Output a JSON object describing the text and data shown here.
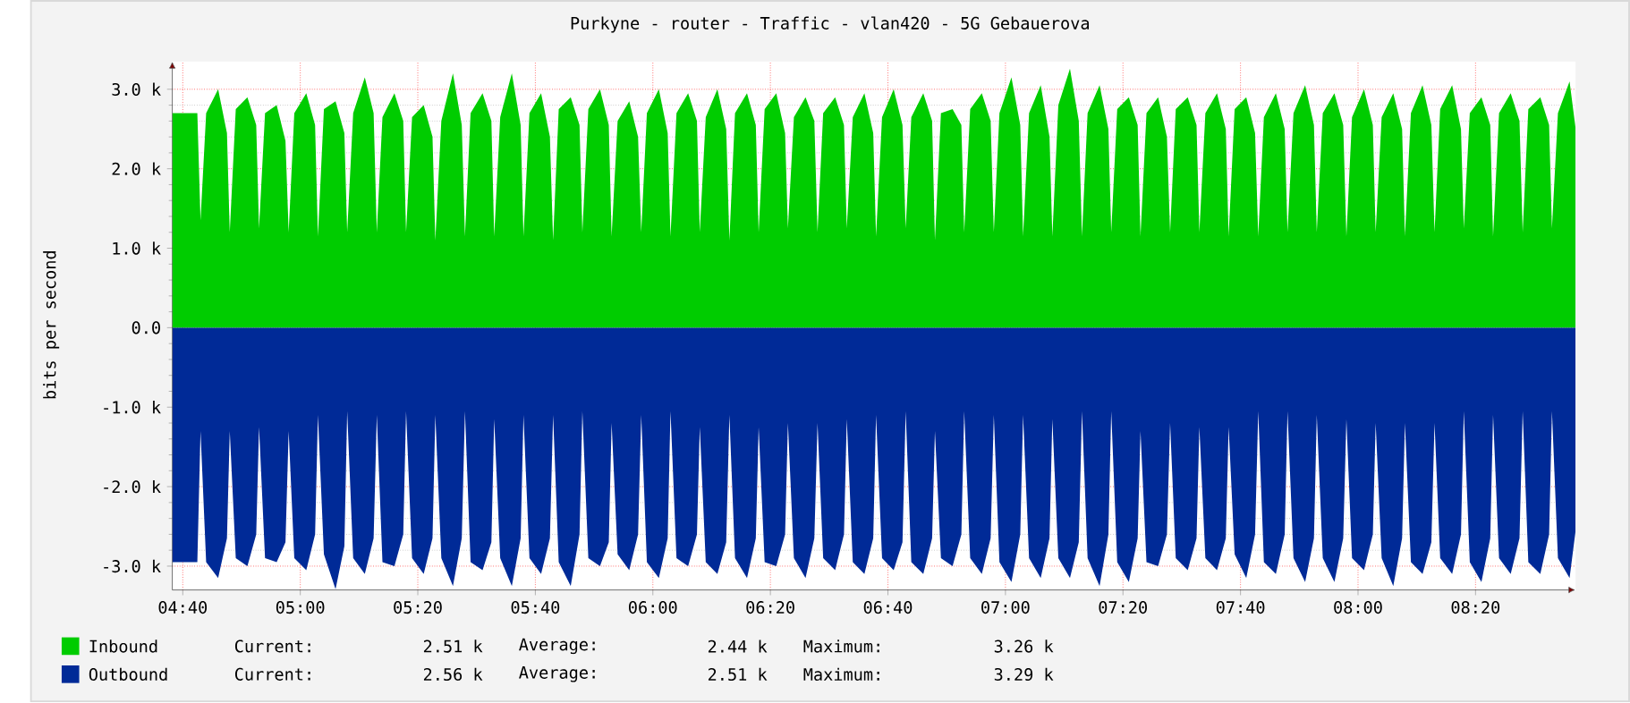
{
  "chart_data": {
    "type": "area",
    "title": "Purkyne - router  - Traffic - vlan420 - 5G Gebauerova",
    "ylabel": "bits per second",
    "x": [
      4.637,
      4.708,
      4.717,
      4.733,
      4.767,
      4.792,
      4.8,
      4.817,
      4.85,
      4.875,
      4.883,
      4.9,
      4.933,
      4.958,
      4.967,
      4.983,
      5.017,
      5.042,
      5.05,
      5.067,
      5.1,
      5.125,
      5.133,
      5.15,
      5.183,
      5.208,
      5.217,
      5.233,
      5.267,
      5.292,
      5.3,
      5.317,
      5.35,
      5.375,
      5.383,
      5.4,
      5.433,
      5.458,
      5.467,
      5.483,
      5.517,
      5.542,
      5.55,
      5.567,
      5.6,
      5.625,
      5.633,
      5.65,
      5.683,
      5.708,
      5.717,
      5.733,
      5.767,
      5.792,
      5.8,
      5.817,
      5.85,
      5.875,
      5.883,
      5.9,
      5.933,
      5.958,
      5.967,
      5.983,
      6.017,
      6.042,
      6.05,
      6.067,
      6.1,
      6.125,
      6.133,
      6.15,
      6.183,
      6.208,
      6.217,
      6.233,
      6.267,
      6.292,
      6.3,
      6.317,
      6.35,
      6.375,
      6.383,
      6.4,
      6.433,
      6.458,
      6.467,
      6.483,
      6.517,
      6.542,
      6.55,
      6.567,
      6.6,
      6.625,
      6.633,
      6.65,
      6.683,
      6.708,
      6.717,
      6.733,
      6.767,
      6.792,
      6.8,
      6.817,
      6.85,
      6.875,
      6.883,
      6.9,
      6.933,
      6.958,
      6.967,
      6.983,
      7.017,
      7.042,
      7.05,
      7.067,
      7.1,
      7.125,
      7.133,
      7.15,
      7.183,
      7.208,
      7.217,
      7.233,
      7.267,
      7.292,
      7.3,
      7.317,
      7.35,
      7.375,
      7.383,
      7.4,
      7.433,
      7.458,
      7.467,
      7.483,
      7.517,
      7.542,
      7.55,
      7.567,
      7.6,
      7.625,
      7.633,
      7.65,
      7.683,
      7.708,
      7.717,
      7.733,
      7.767,
      7.792,
      7.8,
      7.817,
      7.85,
      7.875,
      7.883,
      7.9,
      7.933,
      7.958,
      7.967,
      7.983,
      8.017,
      8.042,
      8.05,
      8.067,
      8.1,
      8.125,
      8.133,
      8.15,
      8.183,
      8.208,
      8.217,
      8.233,
      8.267,
      8.292,
      8.3,
      8.317,
      8.35,
      8.375,
      8.383,
      8.4,
      8.433,
      8.458,
      8.467,
      8.483,
      8.517,
      8.542,
      8.55,
      8.567,
      8.6,
      8.617
    ],
    "series": [
      {
        "name": "Inbound",
        "color": "#00cc00",
        "values": [
          2700,
          2700,
          1350,
          2700,
          3000,
          2450,
          1200,
          2750,
          2900,
          2550,
          1250,
          2700,
          2800,
          2350,
          1200,
          2700,
          2950,
          2550,
          1150,
          2750,
          2850,
          2450,
          1200,
          2700,
          3150,
          2700,
          1200,
          2650,
          2950,
          2600,
          1200,
          2650,
          2800,
          2400,
          1100,
          2600,
          3200,
          2550,
          1150,
          2700,
          2950,
          2600,
          1150,
          2650,
          3200,
          2550,
          1150,
          2700,
          2950,
          2400,
          1100,
          2750,
          2900,
          2550,
          1200,
          2750,
          3000,
          2550,
          1150,
          2600,
          2850,
          2400,
          1200,
          2700,
          3000,
          2450,
          1150,
          2700,
          2950,
          2600,
          1200,
          2650,
          3000,
          2500,
          1100,
          2700,
          2950,
          2550,
          1200,
          2750,
          2950,
          2450,
          1250,
          2650,
          2900,
          2600,
          1200,
          2700,
          2900,
          2550,
          1250,
          2650,
          2950,
          2450,
          1150,
          2650,
          3000,
          2550,
          1250,
          2650,
          2950,
          2600,
          1100,
          2700,
          2750,
          2550,
          1200,
          2750,
          2950,
          2600,
          1200,
          2700,
          3150,
          2550,
          1150,
          2700,
          3050,
          2400,
          1150,
          2800,
          3260,
          2600,
          1150,
          2700,
          3050,
          2500,
          1200,
          2750,
          2900,
          2550,
          1150,
          2700,
          2900,
          2400,
          1200,
          2750,
          2900,
          2550,
          1200,
          2700,
          2950,
          2500,
          1150,
          2750,
          2900,
          2450,
          1150,
          2650,
          2950,
          2500,
          1200,
          2700,
          3050,
          2550,
          1200,
          2700,
          2950,
          2550,
          1150,
          2650,
          3000,
          2550,
          1200,
          2650,
          2950,
          2500,
          1150,
          2700,
          3050,
          2550,
          1200,
          2750,
          3050,
          2500,
          1250,
          2700,
          2900,
          2550,
          1150,
          2700,
          2950,
          2600,
          1200,
          2750,
          2900,
          2550,
          1250,
          2700,
          3100,
          2510
        ]
      },
      {
        "name": "Outbound",
        "color": "#002a97",
        "values": [
          -2950,
          -2950,
          -1300,
          -2950,
          -3150,
          -2650,
          -1300,
          -2900,
          -3000,
          -2600,
          -1250,
          -2900,
          -2950,
          -2700,
          -1300,
          -2900,
          -3050,
          -2600,
          -1100,
          -2850,
          -3290,
          -2750,
          -1050,
          -2900,
          -3100,
          -2650,
          -1100,
          -2950,
          -3000,
          -2600,
          -1050,
          -2900,
          -3100,
          -2650,
          -1100,
          -2900,
          -3250,
          -2650,
          -1050,
          -2950,
          -3050,
          -2700,
          -1150,
          -2900,
          -3250,
          -2650,
          -1100,
          -2900,
          -3100,
          -2650,
          -1100,
          -2950,
          -3250,
          -2600,
          -1050,
          -2900,
          -3000,
          -2700,
          -1200,
          -2850,
          -3050,
          -2600,
          -1100,
          -2950,
          -3150,
          -2650,
          -1050,
          -2900,
          -3000,
          -2600,
          -1250,
          -2950,
          -3100,
          -2700,
          -1100,
          -2900,
          -3150,
          -2650,
          -1250,
          -2950,
          -3000,
          -2600,
          -1200,
          -2900,
          -3150,
          -2650,
          -1200,
          -2900,
          -3050,
          -2600,
          -1150,
          -2950,
          -3100,
          -2650,
          -1100,
          -2900,
          -3050,
          -2700,
          -1050,
          -2950,
          -3100,
          -2650,
          -1300,
          -2900,
          -3000,
          -2600,
          -1050,
          -2900,
          -3100,
          -2650,
          -1100,
          -2950,
          -3200,
          -2600,
          -1100,
          -2900,
          -3150,
          -2650,
          -1150,
          -2900,
          -3150,
          -2700,
          -1050,
          -2900,
          -3250,
          -2600,
          -1050,
          -2950,
          -3200,
          -2650,
          -1300,
          -2950,
          -3000,
          -2600,
          -1200,
          -2900,
          -3050,
          -2650,
          -1250,
          -2900,
          -3050,
          -2650,
          -1250,
          -2850,
          -3150,
          -2600,
          -1050,
          -2950,
          -3100,
          -2600,
          -1050,
          -2900,
          -3200,
          -2650,
          -1100,
          -2900,
          -3200,
          -2650,
          -1150,
          -2900,
          -3050,
          -2600,
          -1200,
          -2900,
          -3250,
          -2650,
          -1200,
          -2950,
          -3100,
          -2700,
          -1200,
          -2900,
          -3100,
          -2600,
          -1050,
          -2950,
          -3200,
          -2650,
          -1100,
          -2900,
          -3100,
          -2650,
          -1050,
          -2950,
          -3100,
          -2600,
          -1050,
          -2900,
          -3150,
          -2560
        ]
      }
    ],
    "xlim": [
      4.637,
      8.617
    ],
    "xticks": [
      {
        "value": 4.6667,
        "label": "04:40"
      },
      {
        "value": 5,
        "label": "05:00"
      },
      {
        "value": 5.3333,
        "label": "05:20"
      },
      {
        "value": 5.6667,
        "label": "05:40"
      },
      {
        "value": 6,
        "label": "06:00"
      },
      {
        "value": 6.3333,
        "label": "06:20"
      },
      {
        "value": 6.6667,
        "label": "06:40"
      },
      {
        "value": 7,
        "label": "07:00"
      },
      {
        "value": 7.3333,
        "label": "07:20"
      },
      {
        "value": 7.6667,
        "label": "07:40"
      },
      {
        "value": 8,
        "label": "08:00"
      },
      {
        "value": 8.3333,
        "label": "08:20"
      }
    ],
    "ylim": [
      -3300,
      3350
    ],
    "yticks": [
      {
        "value": -3000,
        "label": "-3.0 k"
      },
      {
        "value": -2000,
        "label": "-2.0 k"
      },
      {
        "value": -1000,
        "label": "-1.0 k"
      },
      {
        "value": 0,
        "label": "0.0"
      },
      {
        "value": 1000,
        "label": "1.0 k"
      },
      {
        "value": 2000,
        "label": "2.0 k"
      },
      {
        "value": 3000,
        "label": "3.0 k"
      }
    ],
    "grid": true,
    "legend": "bottom",
    "annotations": [
      "Current:",
      "2.51 k",
      "Average:",
      "2.44 k",
      "Maximum:",
      "3.26 k",
      "Current:",
      "2.56 k",
      "Average:",
      "2.51 k",
      "Maximum:",
      "3.29 k"
    ]
  }
}
